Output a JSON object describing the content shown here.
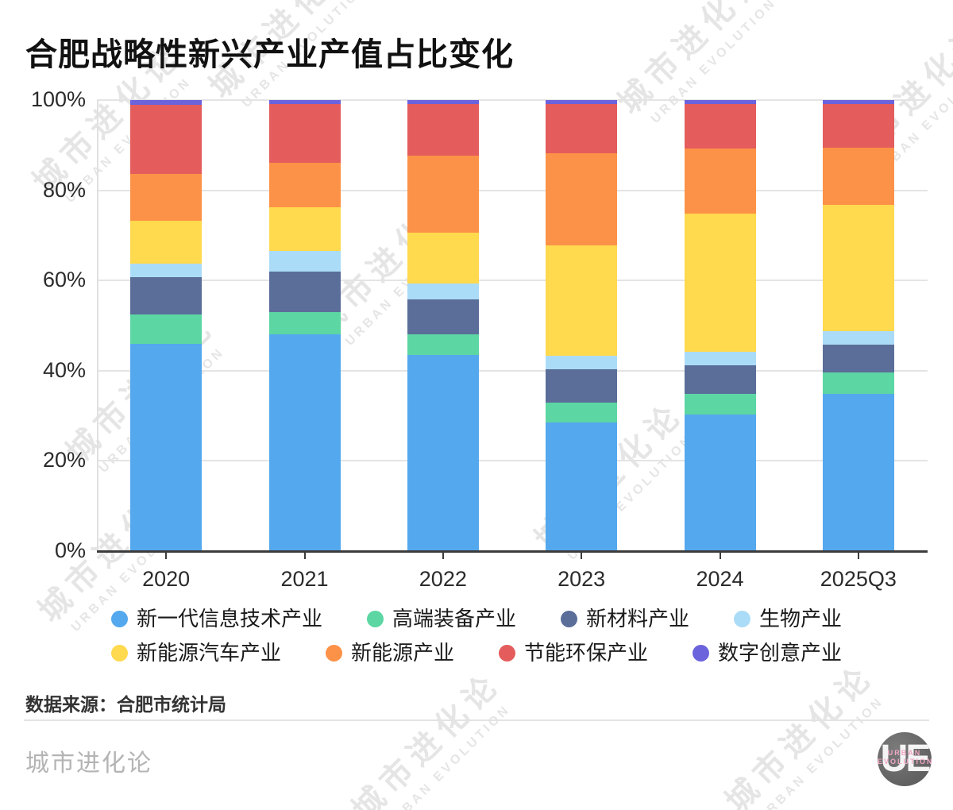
{
  "title": "合肥战略性新兴产业产值占比变化",
  "source_label": "数据来源：合肥市统计局",
  "brand": "城市进化论",
  "logo": {
    "initials": "UE",
    "line1": "URBAN",
    "line2": "EVOLUTION"
  },
  "watermark": {
    "line1": "城市进化论",
    "line2": "URBAN EVOLUTION"
  },
  "chart_data": {
    "type": "bar",
    "subtype": "stacked-percentage",
    "title": "合肥战略性新兴产业产值占比变化",
    "categories": [
      "2020",
      "2021",
      "2022",
      "2023",
      "2024",
      "2025Q3"
    ],
    "y_ticks": [
      "0%",
      "20%",
      "40%",
      "60%",
      "80%",
      "100%"
    ],
    "ylim": [
      0,
      100
    ],
    "unit": "%",
    "grid": true,
    "legend_position": "bottom",
    "series": [
      {
        "name": "新一代信息技术产业",
        "color": "#54A8EE",
        "values": [
          46.0,
          48.0,
          43.5,
          28.5,
          30.3,
          34.8
        ]
      },
      {
        "name": "高端装备产业",
        "color": "#5CD6A3",
        "values": [
          6.5,
          5.0,
          4.5,
          4.5,
          4.5,
          4.9
        ]
      },
      {
        "name": "新材料产业",
        "color": "#5A6E99",
        "values": [
          8.2,
          9.0,
          7.8,
          7.3,
          6.4,
          6.1
        ]
      },
      {
        "name": "生物产业",
        "color": "#ABDCF7",
        "values": [
          3.0,
          4.6,
          3.6,
          3.0,
          2.9,
          2.9
        ]
      },
      {
        "name": "新能源汽车产业",
        "color": "#FFD94E",
        "values": [
          9.5,
          9.7,
          11.2,
          24.5,
          30.7,
          28.0
        ]
      },
      {
        "name": "新能源产业",
        "color": "#FC9247",
        "values": [
          10.5,
          9.9,
          17.0,
          20.4,
          14.5,
          12.8
        ]
      },
      {
        "name": "节能环保产业",
        "color": "#E45C5C",
        "values": [
          15.3,
          12.9,
          11.5,
          10.9,
          9.8,
          9.6
        ]
      },
      {
        "name": "数字创意产业",
        "color": "#6B63DC",
        "values": [
          1.0,
          0.9,
          0.9,
          0.9,
          0.9,
          0.9
        ]
      }
    ]
  }
}
